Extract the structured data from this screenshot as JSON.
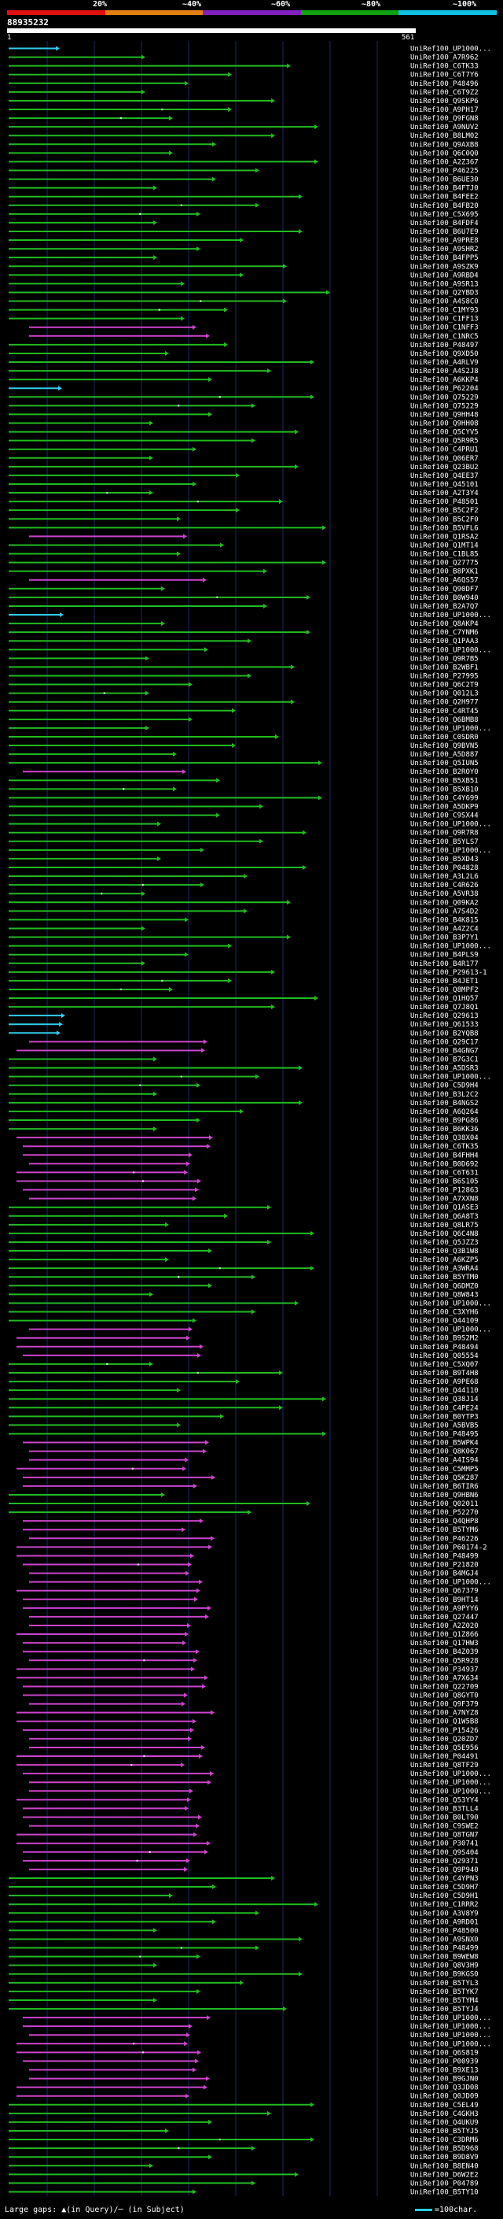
{
  "scale": {
    "labels": [
      "20%",
      "~40%",
      "~60%",
      "~80%",
      "~100%"
    ],
    "colors": [
      "#e01010",
      "#e08010",
      "#8020c0",
      "#10a010",
      "#10c0e0"
    ]
  },
  "query": {
    "id": "88935232",
    "start": "1",
    "end": "561"
  },
  "colors": {
    "cyan": "#33ccee",
    "green": "#22bb22",
    "magenta": "#cc44cc",
    "dots": "#ffffff",
    "grid": "#1a2a66"
  },
  "hits": [
    {
      "label": "UniRef100_UP1000...",
      "color": "cyan"
    },
    {
      "label": "UniRef100_A7R962",
      "color": "green"
    },
    {
      "label": "UniRef100_C6TK33",
      "color": "green"
    },
    {
      "label": "UniRef100_C6T7Y6",
      "color": "green"
    },
    {
      "label": "UniRef100_P48496",
      "color": "green"
    },
    {
      "label": "UniRef100_C6T9Z2",
      "color": "green"
    },
    {
      "label": "UniRef100_Q9SKP6",
      "color": "green"
    },
    {
      "label": "UniRef100_A9PH17",
      "color": "green"
    },
    {
      "label": "UniRef100_Q9FGN8",
      "color": "green"
    },
    {
      "label": "UniRef100_A9NUV2",
      "color": "green"
    },
    {
      "label": "UniRef100_B8LM02",
      "color": "green"
    },
    {
      "label": "UniRef100_Q9AXB8",
      "color": "green"
    },
    {
      "label": "UniRef100_Q6C0Q0",
      "color": "green"
    },
    {
      "label": "UniRef100_A2Z367",
      "color": "green"
    },
    {
      "label": "UniRef100_P46225",
      "color": "green"
    },
    {
      "label": "UniRef100_B6UE30",
      "color": "green"
    },
    {
      "label": "UniRef100_B4FTJ0",
      "color": "green"
    },
    {
      "label": "UniRef100_B4FEE2",
      "color": "green"
    },
    {
      "label": "UniRef100_B4FB20",
      "color": "green"
    },
    {
      "label": "UniRef100_C5X695",
      "color": "green"
    },
    {
      "label": "UniRef100_B4FDF4",
      "color": "green"
    },
    {
      "label": "UniRef100_B6U7E9",
      "color": "green"
    },
    {
      "label": "UniRef100_A9PRE8",
      "color": "green"
    },
    {
      "label": "UniRef100_A9SHR2",
      "color": "green"
    },
    {
      "label": "UniRef100_B4FPP5",
      "color": "green"
    },
    {
      "label": "UniRef100_A9SZK9",
      "color": "green"
    },
    {
      "label": "UniRef100_A9RBD4",
      "color": "green"
    },
    {
      "label": "UniRef100_A9SR13",
      "color": "green"
    },
    {
      "label": "UniRef100_Q2YBD3",
      "color": "green"
    },
    {
      "label": "UniRef100_A4S8C0",
      "color": "green"
    },
    {
      "label": "UniRef100_C1MY93",
      "color": "green"
    },
    {
      "label": "UniRef100_C1FF13",
      "color": "green"
    },
    {
      "label": "UniRef100_C1NFF3",
      "color": "magenta"
    },
    {
      "label": "UniRef100_C1NRC5",
      "color": "magenta"
    },
    {
      "label": "UniRef100_P48497",
      "color": "green"
    },
    {
      "label": "UniRef100_Q9XD50",
      "color": "green"
    },
    {
      "label": "UniRef100_A4RLV9",
      "color": "green"
    },
    {
      "label": "UniRef100_A4S2J8",
      "color": "green"
    },
    {
      "label": "UniRef100_A6KKP4",
      "color": "green"
    },
    {
      "label": "UniRef100_P62204",
      "color": "cyan"
    },
    {
      "label": "UniRef100_Q75229",
      "color": "green"
    },
    {
      "label": "UniRef100_Q75229",
      "color": "green"
    },
    {
      "label": "UniRef100_Q9HH48",
      "color": "green"
    },
    {
      "label": "UniRef100_Q9HH08",
      "color": "green"
    },
    {
      "label": "UniRef100_Q5CYV5",
      "color": "green"
    },
    {
      "label": "UniRef100_Q5R9R5",
      "color": "green"
    },
    {
      "label": "UniRef100_C4PRU1",
      "color": "green"
    },
    {
      "label": "UniRef100_Q06ER7",
      "color": "green"
    },
    {
      "label": "UniRef100_Q23BU2",
      "color": "green"
    },
    {
      "label": "UniRef100_Q4EE37",
      "color": "green"
    },
    {
      "label": "UniRef100_Q45101",
      "color": "green"
    },
    {
      "label": "UniRef100_A2T3Y4",
      "color": "green"
    },
    {
      "label": "UniRef100_P48501",
      "color": "green"
    },
    {
      "label": "UniRef100_B5C2F2",
      "color": "green"
    },
    {
      "label": "UniRef100_B5C2F0",
      "color": "green"
    },
    {
      "label": "UniRef100_B5VFL6",
      "color": "green"
    },
    {
      "label": "UniRef100_Q1RSA2",
      "color": "magenta"
    },
    {
      "label": "UniRef100_Q1MT14",
      "color": "green"
    },
    {
      "label": "UniRef100_C1BL85",
      "color": "green"
    },
    {
      "label": "UniRef100_Q27775",
      "color": "green"
    },
    {
      "label": "UniRef100_B8PXK1",
      "color": "green"
    },
    {
      "label": "UniRef100_A6QS57",
      "color": "magenta"
    },
    {
      "label": "UniRef100_Q90DF7",
      "color": "green"
    },
    {
      "label": "UniRef100_B0W940",
      "color": "green"
    },
    {
      "label": "UniRef100_B2A7Q7",
      "color": "green"
    },
    {
      "label": "UniRef100_UP1000...",
      "color": "cyan"
    },
    {
      "label": "UniRef100_Q8AKP4",
      "color": "green"
    },
    {
      "label": "UniRef100_C7YNM6",
      "color": "green"
    },
    {
      "label": "UniRef100_Q1PAA3",
      "color": "green"
    },
    {
      "label": "UniRef100_UP1000...",
      "color": "green"
    },
    {
      "label": "UniRef100_Q9R7B5",
      "color": "green"
    },
    {
      "label": "UniRef100_B2WBF1",
      "color": "green"
    },
    {
      "label": "UniRef100_P27995",
      "color": "green"
    },
    {
      "label": "UniRef100_Q6C2T9",
      "color": "green"
    },
    {
      "label": "UniRef100_Q012L3",
      "color": "green"
    },
    {
      "label": "UniRef100_Q2H977",
      "color": "green"
    },
    {
      "label": "UniRef100_C4RT45",
      "color": "green"
    },
    {
      "label": "UniRef100_Q6BMB8",
      "color": "green"
    },
    {
      "label": "UniRef100_UP1000...",
      "color": "green"
    },
    {
      "label": "UniRef100_C0SDR0",
      "color": "green"
    },
    {
      "label": "UniRef100_Q9BVN5",
      "color": "green"
    },
    {
      "label": "UniRef100_A5D887",
      "color": "green"
    },
    {
      "label": "UniRef100_Q5IUN5",
      "color": "green"
    },
    {
      "label": "UniRef100_B2ROY0",
      "color": "magenta"
    },
    {
      "label": "UniRef100_B5XB51",
      "color": "green"
    },
    {
      "label": "UniRef100_B5XB10",
      "color": "green"
    },
    {
      "label": "UniRef100_C4Y699",
      "color": "green"
    },
    {
      "label": "UniRef100_A5DKP9",
      "color": "green"
    },
    {
      "label": "UniRef100_C9SX44",
      "color": "green"
    },
    {
      "label": "UniRef100_UP1000...",
      "color": "green"
    },
    {
      "label": "UniRef100_Q9R7R8",
      "color": "green"
    },
    {
      "label": "UniRef100_B5YLS7",
      "color": "green"
    },
    {
      "label": "UniRef100_UP1000...",
      "color": "green"
    },
    {
      "label": "UniRef100_B5XD43",
      "color": "green"
    },
    {
      "label": "UniRef100_P04828",
      "color": "green"
    },
    {
      "label": "UniRef100_A3L2L6",
      "color": "green"
    },
    {
      "label": "UniRef100_C4R626",
      "color": "green"
    },
    {
      "label": "UniRef100_A5VR38",
      "color": "green"
    },
    {
      "label": "UniRef100_Q09KA2",
      "color": "green"
    },
    {
      "label": "UniRef100_A7S4D2",
      "color": "green"
    },
    {
      "label": "UniRef100_B4K815",
      "color": "green"
    },
    {
      "label": "UniRef100_A4Z2C4",
      "color": "green"
    },
    {
      "label": "UniRef100_B3P7Y1",
      "color": "green"
    },
    {
      "label": "UniRef100_UP1000...",
      "color": "green"
    },
    {
      "label": "UniRef100_B4PLS9",
      "color": "green"
    },
    {
      "label": "UniRef100_B4R177",
      "color": "green"
    },
    {
      "label": "UniRef100_P29613-1",
      "color": "green"
    },
    {
      "label": "UniRef100_B4JET1",
      "color": "green"
    },
    {
      "label": "UniRef100_Q8MPF2",
      "color": "green"
    },
    {
      "label": "UniRef100_Q1HQ57",
      "color": "green"
    },
    {
      "label": "UniRef100_Q7J8Q1",
      "color": "green"
    },
    {
      "label": "UniRef100_Q29613",
      "color": "cyan"
    },
    {
      "label": "UniRef100_Q61533",
      "color": "cyan"
    },
    {
      "label": "UniRef100_B2YQB8",
      "color": "cyan"
    },
    {
      "label": "UniRef100_Q29C17",
      "color": "magenta"
    },
    {
      "label": "UniRef100_B4GNG7",
      "color": "magenta"
    },
    {
      "label": "UniRef100_B7G3C1",
      "color": "green"
    },
    {
      "label": "UniRef100_A5DSR3",
      "color": "green"
    },
    {
      "label": "UniRef100_UP1000...",
      "color": "green"
    },
    {
      "label": "UniRef100_C5D9H4",
      "color": "green"
    },
    {
      "label": "UniRef100_B3L2C2",
      "color": "green"
    },
    {
      "label": "UniRef100_B4NGS2",
      "color": "green"
    },
    {
      "label": "UniRef100_A6Q264",
      "color": "green"
    },
    {
      "label": "UniRef100_B9PG86",
      "color": "green"
    },
    {
      "label": "UniRef100_B6KK36",
      "color": "green"
    },
    {
      "label": "UniRef100_Q38X04",
      "color": "magenta"
    },
    {
      "label": "UniRef100_C6TK35",
      "color": "magenta"
    },
    {
      "label": "UniRef100_B4FHH4",
      "color": "magenta"
    },
    {
      "label": "UniRef100_B0D692",
      "color": "magenta"
    },
    {
      "label": "UniRef100_C6T631",
      "color": "magenta"
    },
    {
      "label": "UniRef100_B6S105",
      "color": "magenta"
    },
    {
      "label": "UniRef100_P12863",
      "color": "magenta"
    },
    {
      "label": "UniRef100_A7XXN8",
      "color": "magenta"
    },
    {
      "label": "UniRef100_Q1ASE3",
      "color": "green"
    },
    {
      "label": "UniRef100_Q6A8T3",
      "color": "green"
    },
    {
      "label": "UniRef100_Q8LR75",
      "color": "green"
    },
    {
      "label": "UniRef100_Q6C4N8",
      "color": "green"
    },
    {
      "label": "UniRef100_Q5JZZ3",
      "color": "green"
    },
    {
      "label": "UniRef100_Q3B1W8",
      "color": "green"
    },
    {
      "label": "UniRef100_A6KZP5",
      "color": "green"
    },
    {
      "label": "UniRef100_A3WRA4",
      "color": "green"
    },
    {
      "label": "UniRef100_B5YTM0",
      "color": "green"
    },
    {
      "label": "UniRef100_Q6DMZ0",
      "color": "green"
    },
    {
      "label": "UniRef100_Q8W843",
      "color": "green"
    },
    {
      "label": "UniRef100_UP1000...",
      "color": "green"
    },
    {
      "label": "UniRef100_C3XYH6",
      "color": "green"
    },
    {
      "label": "UniRef100_Q44109",
      "color": "green"
    },
    {
      "label": "UniRef100_UP1000...",
      "color": "magenta"
    },
    {
      "label": "UniRef100_B9S2M2",
      "color": "magenta"
    },
    {
      "label": "UniRef100_P48494",
      "color": "magenta"
    },
    {
      "label": "UniRef100_Q05554",
      "color": "magenta"
    },
    {
      "label": "UniRef100_C5XQ07",
      "color": "green"
    },
    {
      "label": "UniRef100_B9T4H8",
      "color": "green"
    },
    {
      "label": "UniRef100_A9PE68",
      "color": "green"
    },
    {
      "label": "UniRef100_Q44110",
      "color": "green"
    },
    {
      "label": "UniRef100_Q38J14",
      "color": "green"
    },
    {
      "label": "UniRef100_C4PE24",
      "color": "green"
    },
    {
      "label": "UniRef100_B0YTP3",
      "color": "green"
    },
    {
      "label": "UniRef100_A5BVB5",
      "color": "green"
    },
    {
      "label": "UniRef100_P48495",
      "color": "green"
    },
    {
      "label": "UniRef100_B5WPK4",
      "color": "magenta"
    },
    {
      "label": "UniRef100_Q8K067",
      "color": "magenta"
    },
    {
      "label": "UniRef100_A4IS94",
      "color": "magenta"
    },
    {
      "label": "UniRef100_C5MMP5",
      "color": "magenta"
    },
    {
      "label": "UniRef100_Q5K287",
      "color": "magenta"
    },
    {
      "label": "UniRef100_B6TIR6",
      "color": "magenta"
    },
    {
      "label": "UniRef100_Q9HBN6",
      "color": "green"
    },
    {
      "label": "UniRef100_Q02011",
      "color": "green"
    },
    {
      "label": "UniRef100_P52270",
      "color": "green"
    },
    {
      "label": "UniRef100_Q4QHP8",
      "color": "magenta"
    },
    {
      "label": "UniRef100_B5TYM6",
      "color": "magenta"
    },
    {
      "label": "UniRef100_P46226",
      "color": "magenta"
    },
    {
      "label": "UniRef100_P60174-2",
      "color": "magenta"
    },
    {
      "label": "UniRef100_P48499",
      "color": "magenta"
    },
    {
      "label": "UniRef100_P21820",
      "color": "magenta"
    },
    {
      "label": "UniRef100_B4MGJ4",
      "color": "magenta"
    },
    {
      "label": "UniRef100_UP1000...",
      "color": "magenta"
    },
    {
      "label": "UniRef100_Q67379",
      "color": "magenta"
    },
    {
      "label": "UniRef100_B9HT14",
      "color": "magenta"
    },
    {
      "label": "UniRef100_A9PYY6",
      "color": "magenta"
    },
    {
      "label": "UniRef100_Q27447",
      "color": "magenta"
    },
    {
      "label": "UniRef100_A2Z020",
      "color": "magenta"
    },
    {
      "label": "UniRef100_Q1Z866",
      "color": "magenta"
    },
    {
      "label": "UniRef100_Q17HW3",
      "color": "magenta"
    },
    {
      "label": "UniRef100_B4Z039",
      "color": "magenta"
    },
    {
      "label": "UniRef100_Q5R928",
      "color": "magenta"
    },
    {
      "label": "UniRef100_P34937",
      "color": "magenta"
    },
    {
      "label": "UniRef100_A7X634",
      "color": "magenta"
    },
    {
      "label": "UniRef100_Q22709",
      "color": "magenta"
    },
    {
      "label": "UniRef100_Q8GYT0",
      "color": "magenta"
    },
    {
      "label": "UniRef100_Q9F379",
      "color": "magenta"
    },
    {
      "label": "UniRef100_A7NYZ8",
      "color": "magenta"
    },
    {
      "label": "UniRef100_Q1W5B8",
      "color": "magenta"
    },
    {
      "label": "UniRef100_P15426",
      "color": "magenta"
    },
    {
      "label": "UniRef100_Q20ZD7",
      "color": "magenta"
    },
    {
      "label": "UniRef100_Q5E956",
      "color": "magenta"
    },
    {
      "label": "UniRef100_P04491",
      "color": "magenta"
    },
    {
      "label": "UniRef100_Q8TF29",
      "color": "magenta"
    },
    {
      "label": "UniRef100_UP1000...",
      "color": "magenta"
    },
    {
      "label": "UniRef100_UP1000...",
      "color": "magenta"
    },
    {
      "label": "UniRef100_UP1000...",
      "color": "magenta"
    },
    {
      "label": "UniRef100_Q53YY4",
      "color": "magenta"
    },
    {
      "label": "UniRef100_B3TLL4",
      "color": "magenta"
    },
    {
      "label": "UniRef100_B0LT90",
      "color": "magenta"
    },
    {
      "label": "UniRef100_C9SWE2",
      "color": "magenta"
    },
    {
      "label": "UniRef100_Q8TGN7",
      "color": "magenta"
    },
    {
      "label": "UniRef100_P30741",
      "color": "magenta"
    },
    {
      "label": "UniRef100_Q9S404",
      "color": "magenta"
    },
    {
      "label": "UniRef100_Q29371",
      "color": "magenta"
    },
    {
      "label": "UniRef100_Q9P940",
      "color": "magenta"
    },
    {
      "label": "UniRef100_C4YPN3",
      "color": "green"
    },
    {
      "label": "UniRef100_C5D9H7",
      "color": "green"
    },
    {
      "label": "UniRef100_C5D9H1",
      "color": "green"
    },
    {
      "label": "UniRef100_C1RRR2",
      "color": "green"
    },
    {
      "label": "UniRef100_A3V8Y9",
      "color": "green"
    },
    {
      "label": "UniRef100_A9RD01",
      "color": "green"
    },
    {
      "label": "UniRef100_P48500",
      "color": "green"
    },
    {
      "label": "UniRef100_A9SNX0",
      "color": "green"
    },
    {
      "label": "UniRef100_P48499",
      "color": "green"
    },
    {
      "label": "UniRef100_B9WEW8",
      "color": "green"
    },
    {
      "label": "UniRef100_Q8V3H9",
      "color": "green"
    },
    {
      "label": "UniRef100_B9KGS0",
      "color": "green"
    },
    {
      "label": "UniRef100_B5TYL3",
      "color": "green"
    },
    {
      "label": "UniRef100_B5TYK7",
      "color": "green"
    },
    {
      "label": "UniRef100_B5TYM4",
      "color": "green"
    },
    {
      "label": "UniRef100_B5TYJ4",
      "color": "green"
    },
    {
      "label": "UniRef100_UP1000...",
      "color": "magenta"
    },
    {
      "label": "UniRef100_UP1000...",
      "color": "magenta"
    },
    {
      "label": "UniRef100_UP1000...",
      "color": "magenta"
    },
    {
      "label": "UniRef100_UP1000...",
      "color": "magenta"
    },
    {
      "label": "UniRef100_Q6S819",
      "color": "magenta"
    },
    {
      "label": "UniRef100_P00939",
      "color": "magenta"
    },
    {
      "label": "UniRef100_B9XE13",
      "color": "magenta"
    },
    {
      "label": "UniRef100_B9GJN0",
      "color": "magenta"
    },
    {
      "label": "UniRef100_Q3JD08",
      "color": "magenta"
    },
    {
      "label": "UniRef100_Q0JD09",
      "color": "magenta"
    },
    {
      "label": "UniRef100_C5EL49",
      "color": "green"
    },
    {
      "label": "UniRef100_C4GKH3",
      "color": "green"
    },
    {
      "label": "UniRef100_Q4UKU9",
      "color": "green"
    },
    {
      "label": "UniRef100_B5TYJ5",
      "color": "green"
    },
    {
      "label": "UniRef100_C3DRM6",
      "color": "green"
    },
    {
      "label": "UniRef100_B5D968",
      "color": "green"
    },
    {
      "label": "UniRef100_B9D8V9",
      "color": "green"
    },
    {
      "label": "UniRef100_B8EN40",
      "color": "green"
    },
    {
      "label": "UniRef100_D6W2E2",
      "color": "green"
    },
    {
      "label": "UniRef100_P04789",
      "color": "green"
    },
    {
      "label": "UniRef100_B5TY10",
      "color": "green"
    }
  ],
  "legend": {
    "gaps": "Large gaps: ▲(in Query)/─ (in Subject)",
    "scale": "=100char."
  }
}
